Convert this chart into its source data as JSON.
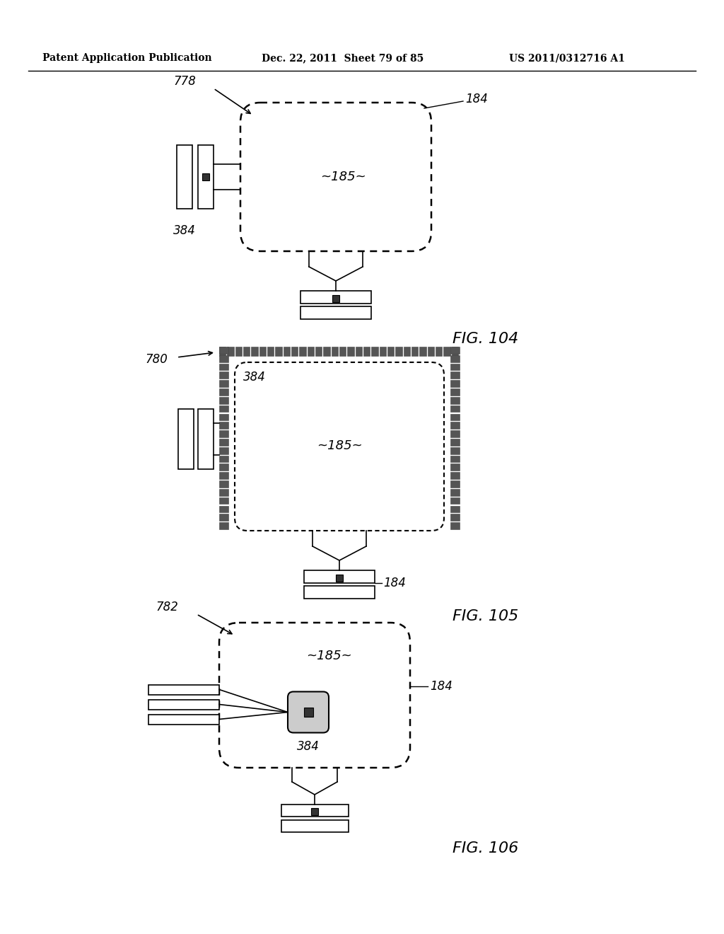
{
  "bg_color": "#ffffff",
  "header_left": "Patent Application Publication",
  "header_mid": "Dec. 22, 2011  Sheet 79 of 85",
  "header_right": "US 2011/0312716 A1",
  "fig104_label": "FIG. 104",
  "fig105_label": "FIG. 105",
  "fig106_label": "FIG. 106",
  "label_778": "778",
  "label_184_1": "184",
  "label_185_1": "~185~",
  "label_384_1": "384",
  "label_780": "780",
  "label_184_2": "184",
  "label_185_2": "~185~",
  "label_384_2": "384",
  "label_782": "782",
  "label_184_3": "184",
  "label_185_3": "~185~",
  "label_384_3": "384"
}
